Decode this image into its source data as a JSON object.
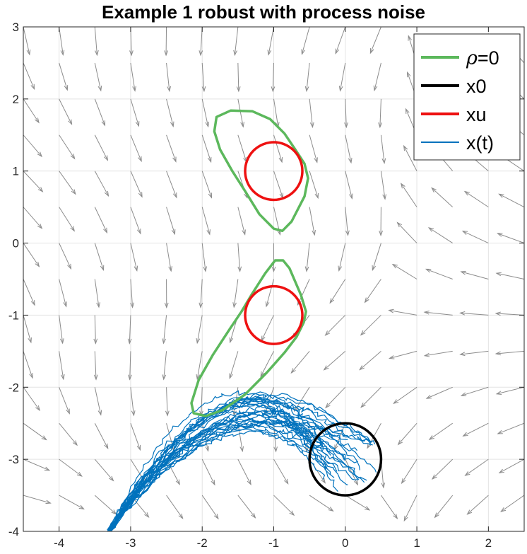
{
  "chart_data": {
    "type": "line",
    "title": "Example 1 robust with process noise",
    "xlabel": "",
    "ylabel": "",
    "xlim": [
      -4.5,
      2.5
    ],
    "ylim": [
      -4,
      3
    ],
    "xticks": [
      -4,
      -3,
      -2,
      -1,
      0,
      1,
      2
    ],
    "yticks": [
      -4,
      -3,
      -2,
      -1,
      0,
      1,
      2,
      3
    ],
    "xtick_labels": [
      "-4",
      "-3",
      "-2",
      "-1",
      "0",
      "1",
      "2"
    ],
    "ytick_labels": [
      "-4",
      "-3",
      "-2",
      "-1",
      "0",
      "1",
      "2",
      "3"
    ],
    "grid": true,
    "legend_position": "top-right",
    "legend": [
      {
        "label_prefix": "ρ",
        "label": "=0",
        "color": "#5cb85c"
      },
      {
        "label": "x0",
        "color": "#000000"
      },
      {
        "label": "xu",
        "color": "#ee1111"
      },
      {
        "label": "x(t)",
        "color": "#0072bd"
      }
    ],
    "colors": {
      "rho": "#5cb85c",
      "x0": "#000000",
      "xu": "#ee1111",
      "xt": "#0072bd",
      "quiver": "#8c8c8c",
      "grid": "#e3e3e3"
    },
    "circles": [
      {
        "name": "xu-circle-upper",
        "cx": -1,
        "cy": 1,
        "r": 0.4,
        "color": "#ee1111"
      },
      {
        "name": "xu-circle-lower",
        "cx": -1,
        "cy": -1,
        "r": 0.4,
        "color": "#ee1111"
      },
      {
        "name": "x0-circle",
        "cx": 0,
        "cy": -3,
        "r": 0.5,
        "color": "#000000"
      }
    ],
    "rho_contours": [
      [
        [
          -1.6,
          1.84
        ],
        [
          -1.8,
          1.75
        ],
        [
          -1.83,
          1.55
        ],
        [
          -1.75,
          1.3
        ],
        [
          -1.58,
          1.0
        ],
        [
          -1.4,
          0.72
        ],
        [
          -1.2,
          0.4
        ],
        [
          -1.0,
          0.2
        ],
        [
          -0.88,
          0.17
        ],
        [
          -0.75,
          0.3
        ],
        [
          -0.57,
          0.65
        ],
        [
          -0.52,
          0.9
        ],
        [
          -0.57,
          1.1
        ],
        [
          -0.7,
          1.3
        ],
        [
          -0.85,
          1.52
        ],
        [
          -1.05,
          1.72
        ],
        [
          -1.3,
          1.83
        ],
        [
          -1.6,
          1.84
        ]
      ],
      [
        [
          -0.98,
          -0.24
        ],
        [
          -0.87,
          -0.24
        ],
        [
          -0.78,
          -0.35
        ],
        [
          -0.62,
          -0.72
        ],
        [
          -0.55,
          -0.95
        ],
        [
          -0.58,
          -1.1
        ],
        [
          -0.68,
          -1.3
        ],
        [
          -0.85,
          -1.52
        ],
        [
          -1.1,
          -1.8
        ],
        [
          -1.4,
          -2.1
        ],
        [
          -1.72,
          -2.32
        ],
        [
          -1.95,
          -2.4
        ],
        [
          -2.12,
          -2.36
        ],
        [
          -2.15,
          -2.22
        ],
        [
          -2.05,
          -1.9
        ],
        [
          -1.85,
          -1.55
        ],
        [
          -1.62,
          -1.2
        ],
        [
          -1.45,
          -0.95
        ],
        [
          -1.3,
          -0.7
        ],
        [
          -1.12,
          -0.42
        ],
        [
          -0.98,
          -0.24
        ]
      ]
    ],
    "quiver": {
      "x_grid": [
        -4.5,
        -4.0,
        -3.5,
        -3.0,
        -2.5,
        -2.0,
        -1.5,
        -1.0,
        -0.5,
        0.0,
        0.5,
        1.0,
        1.5,
        2.0,
        2.5
      ],
      "y_grid": [
        -4.0,
        -3.5,
        -3.0,
        -2.5,
        -2.0,
        -1.5,
        -1.0,
        -0.5,
        0.0,
        0.5,
        1.0,
        1.5,
        2.0,
        2.5,
        3.0
      ]
    },
    "trajectories": {
      "count": 30,
      "start_region": {
        "cx": 0,
        "cy": -3,
        "r": 0.5
      },
      "end_point": [
        -3.3,
        -4.0
      ],
      "peak": [
        -1.3,
        -2.35
      ]
    }
  }
}
